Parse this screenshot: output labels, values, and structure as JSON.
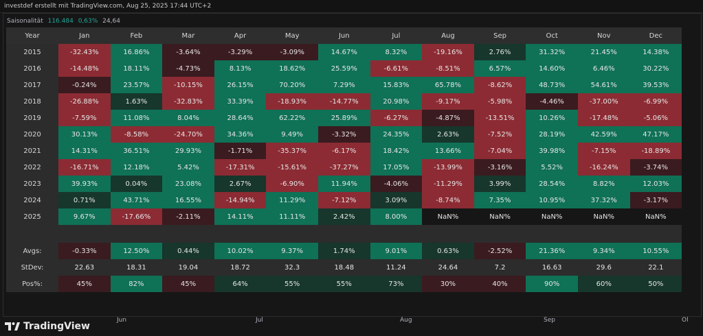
{
  "header": {
    "caption": "investdef erstellt mit TradingView.com, Aug 25, 2025 17:44 UTC+2"
  },
  "legend": {
    "name": "Saisonalität",
    "value1": "116.484",
    "value2": "0,63%",
    "value3": "24,64"
  },
  "table": {
    "year_header": "Year",
    "months": [
      "Jan",
      "Feb",
      "Mar",
      "Apr",
      "May",
      "Jun",
      "Jul",
      "Aug",
      "Sep",
      "Oct",
      "Nov",
      "Dec"
    ],
    "rows": [
      {
        "year": "2015",
        "values": [
          "-32.43%",
          "16.86%",
          "-3.64%",
          "-3.29%",
          "-3.09%",
          "14.67%",
          "8.32%",
          "-19.16%",
          "2.76%",
          "31.32%",
          "21.45%",
          "14.38%"
        ]
      },
      {
        "year": "2016",
        "values": [
          "-14.48%",
          "18.11%",
          "-4.73%",
          "8.13%",
          "18.62%",
          "25.59%",
          "-6.61%",
          "-8.51%",
          "6.57%",
          "14.60%",
          "6.46%",
          "30.22%"
        ]
      },
      {
        "year": "2017",
        "values": [
          "-0.24%",
          "23.57%",
          "-10.15%",
          "26.15%",
          "70.20%",
          "7.29%",
          "15.83%",
          "65.78%",
          "-8.62%",
          "48.73%",
          "54.61%",
          "39.53%"
        ]
      },
      {
        "year": "2018",
        "values": [
          "-26.88%",
          "1.63%",
          "-32.83%",
          "33.39%",
          "-18.93%",
          "-14.77%",
          "20.98%",
          "-9.17%",
          "-5.98%",
          "-4.46%",
          "-37.00%",
          "-6.99%"
        ]
      },
      {
        "year": "2019",
        "values": [
          "-7.59%",
          "11.08%",
          "8.04%",
          "28.64%",
          "62.22%",
          "25.89%",
          "-6.27%",
          "-4.87%",
          "-13.51%",
          "10.26%",
          "-17.48%",
          "-5.06%"
        ]
      },
      {
        "year": "2020",
        "values": [
          "30.13%",
          "-8.58%",
          "-24.70%",
          "34.36%",
          "9.49%",
          "-3.32%",
          "24.35%",
          "2.63%",
          "-7.52%",
          "28.19%",
          "42.59%",
          "47.17%"
        ]
      },
      {
        "year": "2021",
        "values": [
          "14.31%",
          "36.51%",
          "29.93%",
          "-1.71%",
          "-35.37%",
          "-6.17%",
          "18.42%",
          "13.66%",
          "-7.04%",
          "39.98%",
          "-7.15%",
          "-18.89%"
        ]
      },
      {
        "year": "2022",
        "values": [
          "-16.71%",
          "12.18%",
          "5.42%",
          "-17.31%",
          "-15.61%",
          "-37.27%",
          "17.05%",
          "-13.99%",
          "-3.16%",
          "5.52%",
          "-16.24%",
          "-3.74%"
        ]
      },
      {
        "year": "2023",
        "values": [
          "39.93%",
          "0.04%",
          "23.08%",
          "2.67%",
          "-6.90%",
          "11.94%",
          "-4.06%",
          "-11.29%",
          "3.99%",
          "28.54%",
          "8.82%",
          "12.03%"
        ]
      },
      {
        "year": "2024",
        "values": [
          "0.71%",
          "43.71%",
          "16.55%",
          "-14.94%",
          "11.29%",
          "-7.12%",
          "3.09%",
          "-8.74%",
          "7.35%",
          "10.95%",
          "37.32%",
          "-3.17%"
        ]
      },
      {
        "year": "2025",
        "values": [
          "9.67%",
          "-17.66%",
          "-2.11%",
          "14.11%",
          "11.11%",
          "2.42%",
          "8.00%",
          "NaN%",
          "NaN%",
          "NaN%",
          "NaN%",
          "NaN%"
        ]
      }
    ],
    "avgs": {
      "label": "Avgs:",
      "values": [
        "-0.33%",
        "12.50%",
        "0.44%",
        "10.02%",
        "9.37%",
        "1.74%",
        "9.01%",
        "0.63%",
        "-2.52%",
        "21.36%",
        "9.34%",
        "10.55%"
      ]
    },
    "stdev": {
      "label": "StDev:",
      "values": [
        "22.63",
        "18.31",
        "19.04",
        "18.72",
        "32.3",
        "18.48",
        "11.24",
        "24.64",
        "7.2",
        "16.63",
        "29.6",
        "22.1"
      ]
    },
    "pos": {
      "label": "Pos%:",
      "values": [
        "45%",
        "82%",
        "45%",
        "64%",
        "55%",
        "55%",
        "73%",
        "30%",
        "40%",
        "90%",
        "60%",
        "50%"
      ]
    }
  },
  "xaxis": {
    "labels": [
      "Jun",
      "Jul",
      "Aug",
      "Sep",
      "Ol"
    ]
  },
  "footer": {
    "brand": "TradingView"
  },
  "colors": {
    "strong_pos": "#0f7156",
    "weak_pos": "#17362c",
    "strong_neg": "#8c2b33",
    "weak_neg": "#3a1b20",
    "neutral": "#161616"
  }
}
